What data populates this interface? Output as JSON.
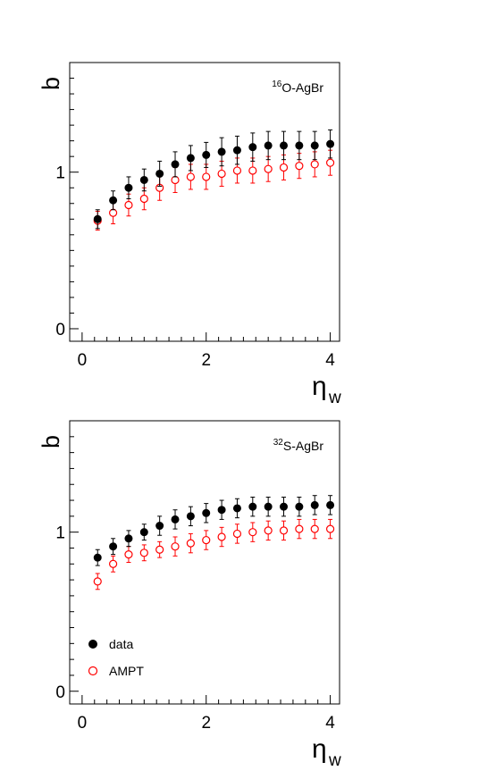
{
  "chart_data": [
    {
      "type": "scatter",
      "panel_label_prefix": "16",
      "panel_label_text": "O-AgBr",
      "xlabel": "η",
      "xlabel_sub": "w",
      "ylabel": "b",
      "xlim": [
        -0.2,
        4.15
      ],
      "ylim": [
        -0.08,
        1.7
      ],
      "xticks": [
        0,
        2,
        4
      ],
      "yticks": [
        0,
        1
      ],
      "x": [
        0.25,
        0.5,
        0.75,
        1.0,
        1.25,
        1.5,
        1.75,
        2.0,
        2.25,
        2.5,
        2.75,
        3.0,
        3.25,
        3.5,
        3.75,
        4.0
      ],
      "series": [
        {
          "name": "data",
          "marker": "filled-circle",
          "color": "#000000",
          "values": [
            0.7,
            0.82,
            0.9,
            0.95,
            0.99,
            1.05,
            1.09,
            1.11,
            1.13,
            1.14,
            1.16,
            1.17,
            1.17,
            1.17,
            1.17,
            1.18
          ],
          "errors": [
            0.06,
            0.06,
            0.07,
            0.07,
            0.08,
            0.08,
            0.08,
            0.08,
            0.09,
            0.09,
            0.09,
            0.09,
            0.09,
            0.09,
            0.09,
            0.09
          ]
        },
        {
          "name": "AMPT",
          "marker": "open-circle",
          "color": "#ff0000",
          "values": [
            0.69,
            0.74,
            0.79,
            0.83,
            0.9,
            0.95,
            0.97,
            0.97,
            0.99,
            1.01,
            1.01,
            1.02,
            1.03,
            1.04,
            1.05,
            1.06
          ],
          "errors": [
            0.06,
            0.07,
            0.07,
            0.07,
            0.08,
            0.08,
            0.08,
            0.08,
            0.08,
            0.08,
            0.08,
            0.08,
            0.08,
            0.08,
            0.08,
            0.08
          ]
        }
      ],
      "legend": false
    },
    {
      "type": "scatter",
      "panel_label_prefix": "32",
      "panel_label_text": "S-AgBr",
      "xlabel": "η",
      "xlabel_sub": "w",
      "ylabel": "b",
      "xlim": [
        -0.2,
        4.15
      ],
      "ylim": [
        -0.08,
        1.7
      ],
      "xticks": [
        0,
        2,
        4
      ],
      "yticks": [
        0,
        1
      ],
      "x": [
        0.25,
        0.5,
        0.75,
        1.0,
        1.25,
        1.5,
        1.75,
        2.0,
        2.25,
        2.5,
        2.75,
        3.0,
        3.25,
        3.5,
        3.75,
        4.0
      ],
      "series": [
        {
          "name": "data",
          "marker": "filled-circle",
          "color": "#000000",
          "values": [
            0.84,
            0.91,
            0.96,
            1.0,
            1.04,
            1.08,
            1.1,
            1.12,
            1.14,
            1.15,
            1.16,
            1.16,
            1.16,
            1.16,
            1.17,
            1.17
          ],
          "errors": [
            0.05,
            0.05,
            0.05,
            0.05,
            0.06,
            0.06,
            0.06,
            0.06,
            0.06,
            0.06,
            0.06,
            0.06,
            0.06,
            0.06,
            0.06,
            0.06
          ]
        },
        {
          "name": "AMPT",
          "marker": "open-circle",
          "color": "#ff0000",
          "values": [
            0.69,
            0.8,
            0.86,
            0.87,
            0.89,
            0.91,
            0.93,
            0.95,
            0.97,
            0.99,
            1.0,
            1.01,
            1.01,
            1.02,
            1.02,
            1.02
          ],
          "errors": [
            0.05,
            0.05,
            0.05,
            0.05,
            0.05,
            0.06,
            0.06,
            0.06,
            0.06,
            0.06,
            0.06,
            0.06,
            0.06,
            0.06,
            0.06,
            0.06
          ]
        }
      ],
      "legend": true,
      "legend_position": "bottom-left"
    }
  ]
}
